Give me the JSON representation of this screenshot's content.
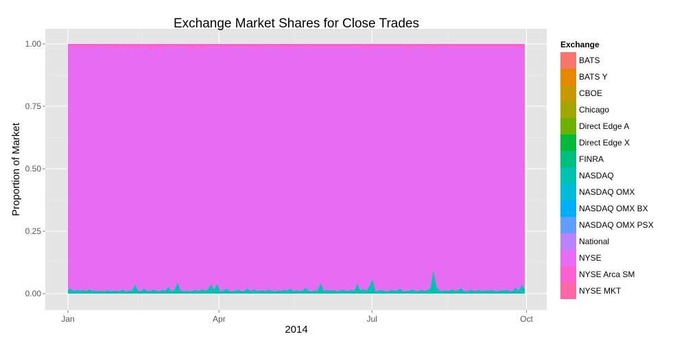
{
  "chart_data": {
    "type": "area",
    "stacked": "fill",
    "title": "Exchange Market Shares for Close Trades",
    "xlabel": "2014",
    "ylabel": "Proportion of Market",
    "x_range": [
      "2014-01-01",
      "2014-09-30"
    ],
    "x_ticks": [
      "Jan",
      "Apr",
      "Jul",
      "Oct"
    ],
    "ylim": [
      0,
      1
    ],
    "y_ticks": [
      "0.00",
      "0.25",
      "0.50",
      "0.75",
      "1.00"
    ],
    "grid": true,
    "legend": {
      "title": "Exchange",
      "placement": "right",
      "items": [
        {
          "name": "BATS",
          "color": "#F8766D"
        },
        {
          "name": "BATS Y",
          "color": "#E58700"
        },
        {
          "name": "CBOE",
          "color": "#C99800"
        },
        {
          "name": "Chicago",
          "color": "#A3A500"
        },
        {
          "name": "Direct Edge A",
          "color": "#6BB100"
        },
        {
          "name": "Direct Edge X",
          "color": "#00BA38"
        },
        {
          "name": "FINRA",
          "color": "#00BF7D"
        },
        {
          "name": "NASDAQ",
          "color": "#00C0AF"
        },
        {
          "name": "NASDAQ OMX",
          "color": "#00BCD8"
        },
        {
          "name": "NASDAQ OMX BX",
          "color": "#00B0F6"
        },
        {
          "name": "NASDAQ OMX PSX",
          "color": "#619CFF"
        },
        {
          "name": "National",
          "color": "#B983FF"
        },
        {
          "name": "NYSE",
          "color": "#E76BF3"
        },
        {
          "name": "NYSE Arca SM",
          "color": "#FD61D1"
        },
        {
          "name": "NYSE MKT",
          "color": "#FF67A4"
        }
      ]
    },
    "series": [
      {
        "name": "NASDAQ",
        "color": "#00C0AF",
        "values": [
          0.014,
          0.02,
          0.01,
          0.016,
          0.012,
          0.015,
          0.01,
          0.018,
          0.011,
          0.013,
          0.01,
          0.012,
          0.009,
          0.014,
          0.01,
          0.012,
          0.011,
          0.01,
          0.016,
          0.009,
          0.012,
          0.011,
          0.038,
          0.012,
          0.01,
          0.02,
          0.011,
          0.01,
          0.016,
          0.012,
          0.01,
          0.015,
          0.011,
          0.028,
          0.01,
          0.014,
          0.046,
          0.012,
          0.01,
          0.013,
          0.009,
          0.012,
          0.015,
          0.01,
          0.018,
          0.012,
          0.016,
          0.038,
          0.014,
          0.042,
          0.01,
          0.012,
          0.02,
          0.011,
          0.01,
          0.013,
          0.015,
          0.01,
          0.012,
          0.02,
          0.01,
          0.017,
          0.012,
          0.011,
          0.014,
          0.01,
          0.016,
          0.012,
          0.01,
          0.013,
          0.011,
          0.015,
          0.012,
          0.02,
          0.01,
          0.014,
          0.011,
          0.012,
          0.024,
          0.011,
          0.01,
          0.013,
          0.012,
          0.044,
          0.01,
          0.015,
          0.012,
          0.014,
          0.011,
          0.01,
          0.016,
          0.012,
          0.011,
          0.015,
          0.01,
          0.042,
          0.012,
          0.02,
          0.011,
          0.03,
          0.058,
          0.01,
          0.012,
          0.015,
          0.011,
          0.01,
          0.014,
          0.013,
          0.012,
          0.02,
          0.01,
          0.012,
          0.011,
          0.016,
          0.012,
          0.01,
          0.015,
          0.011,
          0.014,
          0.02,
          0.096,
          0.03,
          0.012,
          0.011,
          0.014,
          0.01,
          0.016,
          0.012,
          0.013,
          0.022,
          0.011,
          0.01,
          0.014,
          0.012,
          0.011,
          0.016,
          0.01,
          0.013,
          0.012,
          0.015,
          0.011,
          0.01,
          0.014,
          0.012,
          0.016,
          0.011,
          0.01,
          0.024,
          0.012,
          0.034,
          0.02
        ]
      },
      {
        "name": "NYSE",
        "color": "#E76BF3",
        "values": [
          0.974,
          0.968,
          0.98,
          0.97,
          0.976,
          0.975,
          0.978,
          0.962,
          0.977,
          0.977,
          0.979,
          0.975,
          0.981,
          0.976,
          0.972,
          0.976,
          0.969,
          0.98,
          0.962,
          0.979,
          0.976,
          0.969,
          0.952,
          0.974,
          0.97,
          0.968,
          0.977,
          0.958,
          0.974,
          0.976,
          0.97,
          0.973,
          0.977,
          0.958,
          0.978,
          0.974,
          0.942,
          0.976,
          0.978,
          0.975,
          0.979,
          0.966,
          0.973,
          0.978,
          0.96,
          0.976,
          0.972,
          0.95,
          0.974,
          0.946,
          0.978,
          0.976,
          0.962,
          0.977,
          0.978,
          0.975,
          0.973,
          0.978,
          0.976,
          0.968,
          0.978,
          0.966,
          0.976,
          0.977,
          0.972,
          0.978,
          0.97,
          0.976,
          0.978,
          0.975,
          0.977,
          0.973,
          0.976,
          0.962,
          0.978,
          0.974,
          0.977,
          0.976,
          0.96,
          0.977,
          0.978,
          0.975,
          0.976,
          0.944,
          0.978,
          0.973,
          0.976,
          0.974,
          0.977,
          0.978,
          0.972,
          0.976,
          0.977,
          0.973,
          0.978,
          0.948,
          0.976,
          0.96,
          0.977,
          0.95,
          0.93,
          0.978,
          0.976,
          0.973,
          0.977,
          0.978,
          0.974,
          0.975,
          0.976,
          0.968,
          0.978,
          0.976,
          0.968,
          0.97,
          0.976,
          0.978,
          0.973,
          0.977,
          0.974,
          0.968,
          0.884,
          0.958,
          0.976,
          0.977,
          0.974,
          0.978,
          0.972,
          0.976,
          0.975,
          0.966,
          0.977,
          0.978,
          0.974,
          0.976,
          0.977,
          0.972,
          0.978,
          0.975,
          0.976,
          0.973,
          0.977,
          0.978,
          0.974,
          0.976,
          0.972,
          0.977,
          0.978,
          0.964,
          0.976,
          0.946,
          0.958
        ]
      },
      {
        "name": "NYSE Arca SM",
        "color": "#FD61D1",
        "values": [
          0.012,
          0.012,
          0.01,
          0.014,
          0.012,
          0.01,
          0.012,
          0.02,
          0.012,
          0.01,
          0.011,
          0.013,
          0.01,
          0.01,
          0.018,
          0.012,
          0.02,
          0.01,
          0.022,
          0.012,
          0.012,
          0.02,
          0.01,
          0.014,
          0.02,
          0.012,
          0.012,
          0.032,
          0.01,
          0.012,
          0.02,
          0.012,
          0.012,
          0.014,
          0.012,
          0.012,
          0.012,
          0.012,
          0.012,
          0.012,
          0.012,
          0.022,
          0.012,
          0.012,
          0.022,
          0.012,
          0.012,
          0.012,
          0.012,
          0.012,
          0.012,
          0.012,
          0.018,
          0.012,
          0.012,
          0.012,
          0.012,
          0.012,
          0.012,
          0.012,
          0.012,
          0.017,
          0.012,
          0.012,
          0.014,
          0.012,
          0.014,
          0.012,
          0.012,
          0.012,
          0.012,
          0.012,
          0.012,
          0.018,
          0.012,
          0.012,
          0.012,
          0.012,
          0.016,
          0.012,
          0.012,
          0.012,
          0.012,
          0.012,
          0.012,
          0.012,
          0.012,
          0.012,
          0.012,
          0.012,
          0.012,
          0.012,
          0.012,
          0.012,
          0.012,
          0.01,
          0.012,
          0.02,
          0.012,
          0.02,
          0.012,
          0.012,
          0.012,
          0.012,
          0.012,
          0.012,
          0.012,
          0.012,
          0.012,
          0.012,
          0.012,
          0.012,
          0.021,
          0.014,
          0.012,
          0.012,
          0.012,
          0.012,
          0.012,
          0.012,
          0.02,
          0.012,
          0.012,
          0.012,
          0.012,
          0.012,
          0.012,
          0.012,
          0.012,
          0.012,
          0.012,
          0.012,
          0.012,
          0.012,
          0.012,
          0.012,
          0.012,
          0.012,
          0.012,
          0.012,
          0.012,
          0.012,
          0.012,
          0.012,
          0.012,
          0.012,
          0.012,
          0.012,
          0.012,
          0.02,
          0.022
        ]
      }
    ]
  }
}
